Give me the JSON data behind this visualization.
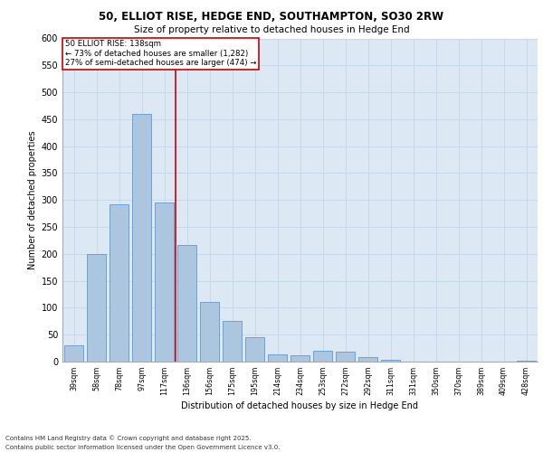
{
  "title_line1": "50, ELLIOT RISE, HEDGE END, SOUTHAMPTON, SO30 2RW",
  "title_line2": "Size of property relative to detached houses in Hedge End",
  "xlabel": "Distribution of detached houses by size in Hedge End",
  "ylabel": "Number of detached properties",
  "categories": [
    "39sqm",
    "58sqm",
    "78sqm",
    "97sqm",
    "117sqm",
    "136sqm",
    "156sqm",
    "175sqm",
    "195sqm",
    "214sqm",
    "234sqm",
    "253sqm",
    "272sqm",
    "292sqm",
    "311sqm",
    "331sqm",
    "350sqm",
    "370sqm",
    "389sqm",
    "409sqm",
    "428sqm"
  ],
  "values": [
    30,
    199,
    292,
    460,
    295,
    217,
    110,
    75,
    46,
    13,
    11,
    20,
    19,
    8,
    4,
    0,
    0,
    0,
    0,
    0,
    1
  ],
  "bar_color": "#adc6e0",
  "bar_edge_color": "#5b9bd5",
  "grid_color": "#c8d8ec",
  "background_color": "#dce9f5",
  "annotation_line_color": "#cc0000",
  "annotation_box_color": "#ffffff",
  "annotation_text_line1": "50 ELLIOT RISE: 138sqm",
  "annotation_text_line2": "← 73% of detached houses are smaller (1,282)",
  "annotation_text_line3": "27% of semi-detached houses are larger (474) →",
  "vline_x": 4.5,
  "ylim": [
    0,
    600
  ],
  "yticks": [
    0,
    50,
    100,
    150,
    200,
    250,
    300,
    350,
    400,
    450,
    500,
    550,
    600
  ],
  "footer_line1": "Contains HM Land Registry data © Crown copyright and database right 2025.",
  "footer_line2": "Contains public sector information licensed under the Open Government Licence v3.0."
}
